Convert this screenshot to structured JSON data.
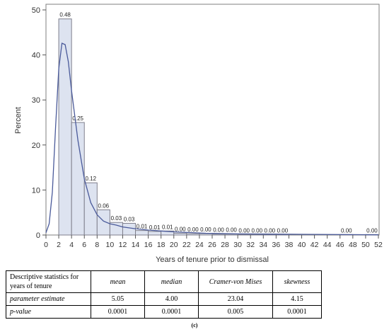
{
  "chart_data": {
    "type": "bar",
    "xlabel": "Years of tenure prior to dismissal",
    "ylabel": "Percent",
    "xlim": [
      0,
      52
    ],
    "ylim": [
      0,
      50
    ],
    "x_ticks": [
      "0",
      "2",
      "4",
      "6",
      "8",
      "10",
      "12",
      "14",
      "16",
      "18",
      "20",
      "22",
      "24",
      "26",
      "28",
      "30",
      "32",
      "34",
      "36",
      "38",
      "40",
      "42",
      "44",
      "46",
      "48",
      "50",
      "52"
    ],
    "y_ticks": [
      "0",
      "10",
      "20",
      "30",
      "40",
      "50"
    ],
    "bins": [
      {
        "x0": 2,
        "x1": 4,
        "value": 48.0,
        "label": "0.48"
      },
      {
        "x0": 4,
        "x1": 6,
        "value": 25.0,
        "label": "0.25"
      },
      {
        "x0": 6,
        "x1": 8,
        "value": 11.6,
        "label": "0.12"
      },
      {
        "x0": 8,
        "x1": 10,
        "value": 5.6,
        "label": "0.06"
      },
      {
        "x0": 10,
        "x1": 12,
        "value": 2.8,
        "label": "0.03"
      },
      {
        "x0": 12,
        "x1": 14,
        "value": 2.6,
        "label": "0.03"
      },
      {
        "x0": 14,
        "x1": 16,
        "value": 1.0,
        "label": "0.01"
      },
      {
        "x0": 16,
        "x1": 18,
        "value": 0.8,
        "label": "0.01"
      },
      {
        "x0": 18,
        "x1": 20,
        "value": 0.9,
        "label": "0.01"
      },
      {
        "x0": 20,
        "x1": 22,
        "value": 0.4,
        "label": "0.00"
      },
      {
        "x0": 22,
        "x1": 24,
        "value": 0.3,
        "label": "0.00"
      },
      {
        "x0": 24,
        "x1": 26,
        "value": 0.3,
        "label": "0.00"
      },
      {
        "x0": 26,
        "x1": 28,
        "value": 0.2,
        "label": "0.00"
      },
      {
        "x0": 28,
        "x1": 30,
        "value": 0.2,
        "label": "0.00"
      },
      {
        "x0": 30,
        "x1": 32,
        "value": 0.1,
        "label": "0.00"
      },
      {
        "x0": 32,
        "x1": 34,
        "value": 0.1,
        "label": "0.00"
      },
      {
        "x0": 34,
        "x1": 36,
        "value": 0.1,
        "label": "0.00"
      },
      {
        "x0": 36,
        "x1": 38,
        "value": 0.1,
        "label": "0.00"
      },
      {
        "x0": 46,
        "x1": 48,
        "value": 0.1,
        "label": "0.00"
      },
      {
        "x0": 50,
        "x1": 52,
        "value": 0.1,
        "label": "0.00"
      }
    ],
    "density_curve": {
      "x": [
        0,
        0.5,
        1,
        1.5,
        2,
        2.5,
        3,
        3.5,
        4,
        5,
        6,
        7,
        8,
        9,
        10,
        11,
        12,
        14,
        16,
        18,
        20,
        25,
        30,
        40,
        52
      ],
      "y": [
        0.5,
        2.5,
        9.5,
        24,
        37,
        42.6,
        42.3,
        38.5,
        32,
        21,
        12.5,
        7.2,
        4.5,
        3.1,
        2.5,
        2.2,
        1.8,
        1.4,
        1.1,
        0.9,
        0.7,
        0.4,
        0.25,
        0.15,
        0.05
      ]
    },
    "bar_fill": "#dde3f0",
    "bar_stroke": "#7f7f8c",
    "curve_color": "#4a5a9a",
    "legend": "none"
  },
  "table": {
    "header": [
      "Descriptive statistics for years of tenure",
      "mean",
      "median",
      "Cramer-von Mises",
      "skewness"
    ],
    "rows": [
      [
        "parameter estimate",
        "5.05",
        "4.00",
        "23.04",
        "4.15"
      ],
      [
        "p-value",
        "0.0001",
        "0.0001",
        "0.005",
        "0.0001"
      ]
    ]
  },
  "caption": "(c)"
}
